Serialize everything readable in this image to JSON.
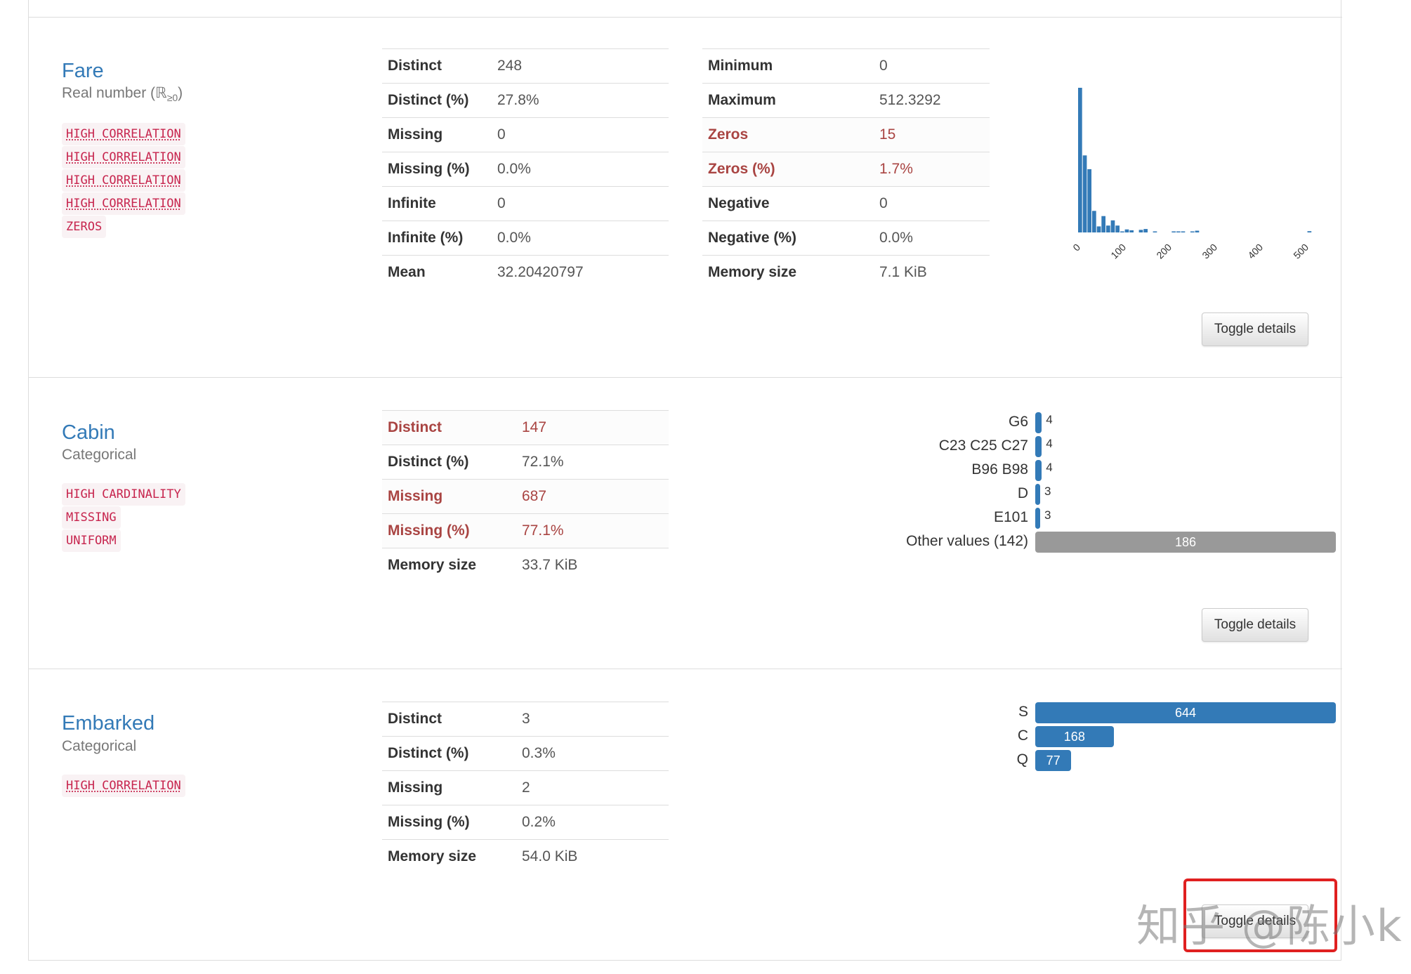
{
  "toggle_label": "Toggle details",
  "colors": {
    "accent": "#337ab7",
    "alert": "#a94442",
    "tag_text": "#c7254e",
    "tag_bg": "#f9f2f4",
    "other_bar": "#999999"
  },
  "variables": [
    {
      "name": "Fare",
      "type": "Real number (ℝ",
      "type_sub": "≥0",
      "type_close": ")",
      "tags": [
        {
          "label": "HIGH CORRELATION",
          "abbr": true
        },
        {
          "label": "HIGH CORRELATION",
          "abbr": true
        },
        {
          "label": "HIGH CORRELATION",
          "abbr": true
        },
        {
          "label": "HIGH CORRELATION",
          "abbr": true
        },
        {
          "label": "ZEROS",
          "abbr": false
        }
      ],
      "table_left": [
        {
          "key": "Distinct",
          "value": "248",
          "alert": false
        },
        {
          "key": "Distinct (%)",
          "value": "27.8%",
          "alert": false
        },
        {
          "key": "Missing",
          "value": "0",
          "alert": false
        },
        {
          "key": "Missing (%)",
          "value": "0.0%",
          "alert": false
        },
        {
          "key": "Infinite",
          "value": "0",
          "alert": false
        },
        {
          "key": "Infinite (%)",
          "value": "0.0%",
          "alert": false
        },
        {
          "key": "Mean",
          "value": "32.20420797",
          "alert": false
        }
      ],
      "table_right": [
        {
          "key": "Minimum",
          "value": "0",
          "alert": false
        },
        {
          "key": "Maximum",
          "value": "512.3292",
          "alert": false
        },
        {
          "key": "Zeros",
          "value": "15",
          "alert": true
        },
        {
          "key": "Zeros (%)",
          "value": "1.7%",
          "alert": true
        },
        {
          "key": "Negative",
          "value": "0",
          "alert": false
        },
        {
          "key": "Negative (%)",
          "value": "0.0%",
          "alert": false
        },
        {
          "key": "Memory size",
          "value": "7.1 KiB",
          "alert": false
        }
      ]
    },
    {
      "name": "Cabin",
      "type": "Categorical",
      "tags": [
        {
          "label": "HIGH CARDINALITY",
          "abbr": false
        },
        {
          "label": "MISSING",
          "abbr": false
        },
        {
          "label": "UNIFORM",
          "abbr": false
        }
      ],
      "table_left": [
        {
          "key": "Distinct",
          "value": "147",
          "alert": true
        },
        {
          "key": "Distinct (%)",
          "value": "72.1%",
          "alert": false
        },
        {
          "key": "Missing",
          "value": "687",
          "alert": true
        },
        {
          "key": "Missing (%)",
          "value": "77.1%",
          "alert": true
        },
        {
          "key": "Memory size",
          "value": "33.7 KiB",
          "alert": false
        }
      ],
      "frequencies": [
        {
          "label": "G6",
          "count": 4
        },
        {
          "label": "C23 C25 C27",
          "count": 4
        },
        {
          "label": "B96 B98",
          "count": 4
        },
        {
          "label": "D",
          "count": 3
        },
        {
          "label": "E101",
          "count": 3
        },
        {
          "label": "Other values (142)",
          "count": 186,
          "other": true
        }
      ]
    },
    {
      "name": "Embarked",
      "type": "Categorical",
      "tags": [
        {
          "label": "HIGH CORRELATION",
          "abbr": true
        }
      ],
      "table_left": [
        {
          "key": "Distinct",
          "value": "3",
          "alert": false
        },
        {
          "key": "Distinct (%)",
          "value": "0.3%",
          "alert": false
        },
        {
          "key": "Missing",
          "value": "2",
          "alert": false
        },
        {
          "key": "Missing (%)",
          "value": "0.2%",
          "alert": false
        },
        {
          "key": "Memory size",
          "value": "54.0 KiB",
          "alert": false
        }
      ],
      "frequencies": [
        {
          "label": "S",
          "count": 644
        },
        {
          "label": "C",
          "count": 168
        },
        {
          "label": "Q",
          "count": 77
        }
      ]
    }
  ],
  "chart_data": {
    "type": "bar",
    "title": "",
    "xlabel": "",
    "ylabel": "",
    "xlim": [
      0,
      512.3292
    ],
    "x_ticks": [
      "0",
      "100",
      "200",
      "300",
      "400",
      "500"
    ],
    "bin_width": 10.25,
    "values": [
      336,
      179,
      147,
      50,
      14,
      38,
      16,
      28,
      16,
      1,
      7,
      5,
      0,
      6,
      8,
      0,
      1,
      0,
      0,
      0,
      2,
      1,
      2,
      0,
      1,
      4,
      0,
      0,
      0,
      0,
      0,
      0,
      0,
      0,
      0,
      0,
      0,
      0,
      0,
      0,
      0,
      0,
      0,
      0,
      0,
      0,
      0,
      0,
      0,
      3
    ],
    "grid": false,
    "legend": "none"
  },
  "watermark": "知乎 @陈小k"
}
